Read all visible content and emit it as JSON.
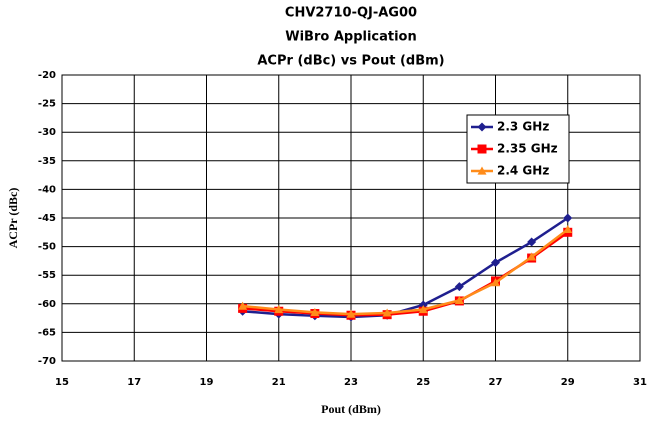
{
  "chart_data": {
    "type": "line",
    "title": [
      "CHV2710-QJ-AG00",
      "WiBro Application",
      "ACPr (dBc) vs Pout (dBm)"
    ],
    "xlabel": "Pout (dBm)",
    "ylabel": "ACPr (dBc)",
    "x": [
      20,
      21,
      22,
      23,
      24,
      25,
      26,
      27,
      28,
      29
    ],
    "series": [
      {
        "name": "2.3 GHz",
        "color": "#1f1f8f",
        "marker": "diamond",
        "values": [
          -61.3,
          -61.8,
          -62.1,
          -62.3,
          -62.0,
          -60.2,
          -57.0,
          -52.8,
          -49.2,
          -45.0
        ]
      },
      {
        "name": "2.35 GHz",
        "color": "#ff0000",
        "marker": "square",
        "values": [
          -60.8,
          -61.3,
          -61.7,
          -62.0,
          -61.9,
          -61.3,
          -59.5,
          -56.0,
          -52.0,
          -47.5
        ]
      },
      {
        "name": "2.4 GHz",
        "color": "#ff8c1a",
        "marker": "triangle",
        "values": [
          -60.4,
          -61.0,
          -61.5,
          -61.8,
          -61.6,
          -61.0,
          -59.4,
          -56.3,
          -51.8,
          -47.0
        ]
      }
    ],
    "xlim": [
      15,
      31
    ],
    "xticks": [
      15,
      17,
      19,
      21,
      23,
      25,
      27,
      29,
      31
    ],
    "ylim": [
      -70,
      -20
    ],
    "yticks": [
      -70,
      -65,
      -60,
      -55,
      -50,
      -45,
      -40,
      -35,
      -30,
      -25,
      -20
    ],
    "grid": true,
    "legend": "upper right"
  }
}
